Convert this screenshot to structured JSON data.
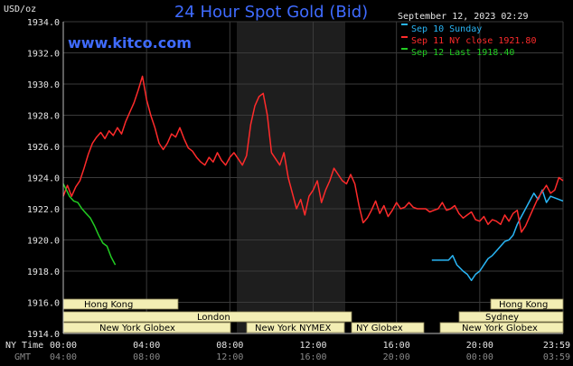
{
  "header": {
    "title": "24 Hour Spot Gold (Bid)",
    "brand": "www.kitco.com",
    "datetime": "September 12, 2023 02:29",
    "ylabel": "USD/oz"
  },
  "legend": [
    {
      "label": "Sep 10 Sunday",
      "color": "#29b6f6"
    },
    {
      "label": "Sep 11 NY close 1921.80",
      "color": "#ff2b2b"
    },
    {
      "label": "Sep 12 Last 1918.40",
      "color": "#22cc22"
    }
  ],
  "axis_captions": {
    "ny": "NY Time",
    "gmt": "GMT"
  },
  "sessions": [
    {
      "label": "Hong Kong",
      "row": 0
    },
    {
      "label": "Hong Kong",
      "row": 0
    },
    {
      "label": "London",
      "row": 1
    },
    {
      "label": "Sydney",
      "row": 1
    },
    {
      "label": "New York Globex",
      "row": 2
    },
    {
      "label": "New York NYMEX",
      "row": 2
    },
    {
      "label": "NY Globex",
      "row": 2
    },
    {
      "label": "New York Globex",
      "row": 2
    }
  ],
  "chart_data": {
    "type": "line",
    "title": "24 Hour Spot Gold (Bid)",
    "ylabel": "USD/oz",
    "ylim": [
      1914,
      1934
    ],
    "yticks": [
      "1914.0",
      "1916.0",
      "1918.0",
      "1920.0",
      "1922.0",
      "1924.0",
      "1926.0",
      "1928.0",
      "1930.0",
      "1932.0",
      "1934.0"
    ],
    "xlim": [
      0,
      24
    ],
    "xticks_ny": [
      "00:00",
      "04:00",
      "08:00",
      "12:00",
      "16:00",
      "20:00",
      "23:59"
    ],
    "xticks_gmt": [
      "04:00",
      "08:00",
      "12:00",
      "16:00",
      "20:00",
      "00:00",
      "03:59"
    ],
    "grid": true,
    "series": [
      {
        "name": "Sep 10 Sunday",
        "color": "#29b6f6",
        "x": [
          17.7,
          18.2,
          18.5,
          18.7,
          18.9,
          19.2,
          19.4,
          19.6,
          19.8,
          20.0,
          20.2,
          20.4,
          20.6,
          20.8,
          21.0,
          21.2,
          21.4,
          21.6,
          21.8,
          22.0,
          22.2,
          22.4,
          22.6,
          22.8,
          23.0,
          23.2,
          23.4,
          23.6,
          23.8,
          24.0
        ],
        "values": [
          1918.7,
          1918.7,
          1918.7,
          1919.0,
          1918.4,
          1918.0,
          1917.8,
          1917.4,
          1917.8,
          1918.0,
          1918.4,
          1918.8,
          1919.0,
          1919.3,
          1919.6,
          1919.9,
          1920.0,
          1920.3,
          1921.0,
          1921.5,
          1922.0,
          1922.5,
          1923.0,
          1922.6,
          1923.2,
          1922.4,
          1922.8,
          1922.7,
          1922.6,
          1922.5
        ]
      },
      {
        "name": "Sep 11 NY close 1921.80",
        "color": "#ff2b2b",
        "x": [
          0.0,
          0.2,
          0.4,
          0.6,
          0.8,
          1.0,
          1.2,
          1.4,
          1.6,
          1.8,
          2.0,
          2.2,
          2.4,
          2.6,
          2.8,
          3.0,
          3.2,
          3.4,
          3.6,
          3.8,
          4.0,
          4.2,
          4.4,
          4.6,
          4.8,
          5.0,
          5.2,
          5.4,
          5.6,
          5.8,
          6.0,
          6.2,
          6.4,
          6.6,
          6.8,
          7.0,
          7.2,
          7.4,
          7.6,
          7.8,
          8.0,
          8.2,
          8.4,
          8.6,
          8.8,
          9.0,
          9.2,
          9.4,
          9.6,
          9.8,
          10.0,
          10.2,
          10.4,
          10.6,
          10.8,
          11.0,
          11.2,
          11.4,
          11.6,
          11.8,
          12.0,
          12.2,
          12.4,
          12.6,
          12.8,
          13.0,
          13.2,
          13.4,
          13.6,
          13.8,
          14.0,
          14.2,
          14.4,
          14.6,
          14.8,
          15.0,
          15.2,
          15.4,
          15.6,
          15.8,
          16.0,
          16.2,
          16.4,
          16.6,
          16.8,
          17.0,
          17.2,
          17.4,
          17.6,
          17.8,
          18.0,
          18.2,
          18.4,
          18.6,
          18.8,
          19.0,
          19.2,
          19.4,
          19.6,
          19.8,
          20.0,
          20.2,
          20.4,
          20.6,
          20.8,
          21.0,
          21.2,
          21.4,
          21.6,
          21.8,
          22.0,
          22.2,
          22.4,
          22.6,
          22.8,
          23.0,
          23.2,
          23.4,
          23.6,
          23.8,
          24.0
        ],
        "values": [
          1922.8,
          1923.5,
          1922.8,
          1923.4,
          1923.8,
          1924.6,
          1925.5,
          1926.2,
          1926.6,
          1926.9,
          1926.5,
          1927.0,
          1926.7,
          1927.2,
          1926.8,
          1927.6,
          1928.2,
          1928.8,
          1929.6,
          1930.5,
          1929.0,
          1928.0,
          1927.2,
          1926.2,
          1925.8,
          1926.2,
          1926.8,
          1926.6,
          1927.2,
          1926.5,
          1925.9,
          1925.7,
          1925.3,
          1925.0,
          1924.8,
          1925.3,
          1925.0,
          1925.6,
          1925.1,
          1924.8,
          1925.3,
          1925.6,
          1925.2,
          1924.8,
          1925.4,
          1927.4,
          1928.6,
          1929.2,
          1929.4,
          1928.0,
          1925.6,
          1925.2,
          1924.8,
          1925.6,
          1924.0,
          1923.0,
          1922.0,
          1922.6,
          1921.6,
          1922.8,
          1923.2,
          1923.8,
          1922.4,
          1923.2,
          1923.8,
          1924.6,
          1924.2,
          1923.8,
          1923.6,
          1924.2,
          1923.6,
          1922.2,
          1921.1,
          1921.4,
          1921.9,
          1922.5,
          1921.7,
          1922.2,
          1921.5,
          1921.9,
          1922.4,
          1922.0,
          1922.1,
          1922.4,
          1922.1,
          1922.0,
          1922.0,
          1922.0,
          1921.8,
          1921.9,
          1922.0,
          1922.4,
          1921.9,
          1922.0,
          1922.2,
          1921.7,
          1921.4,
          1921.6,
          1921.8,
          1921.3,
          1921.2,
          1921.5,
          1921.0,
          1921.3,
          1921.2,
          1921.0,
          1921.6,
          1921.2,
          1921.7,
          1921.9,
          1920.5,
          1920.9,
          1921.5,
          1922.1,
          1922.7,
          1923.1,
          1923.5,
          1923.0,
          1923.2,
          1924.0,
          1923.8
        ],
        "x_extra": [],
        "note": ""
      },
      {
        "name": "Sep 12 Last 1918.40",
        "color": "#22cc22",
        "x": [
          0.0,
          0.15,
          0.3,
          0.5,
          0.7,
          0.9,
          1.1,
          1.3,
          1.5,
          1.7,
          1.9,
          2.1,
          2.3,
          2.5
        ],
        "values": [
          1923.6,
          1923.2,
          1922.8,
          1922.5,
          1922.4,
          1922.0,
          1921.7,
          1921.4,
          1920.9,
          1920.3,
          1919.8,
          1919.6,
          1918.9,
          1918.4
        ]
      }
    ]
  }
}
